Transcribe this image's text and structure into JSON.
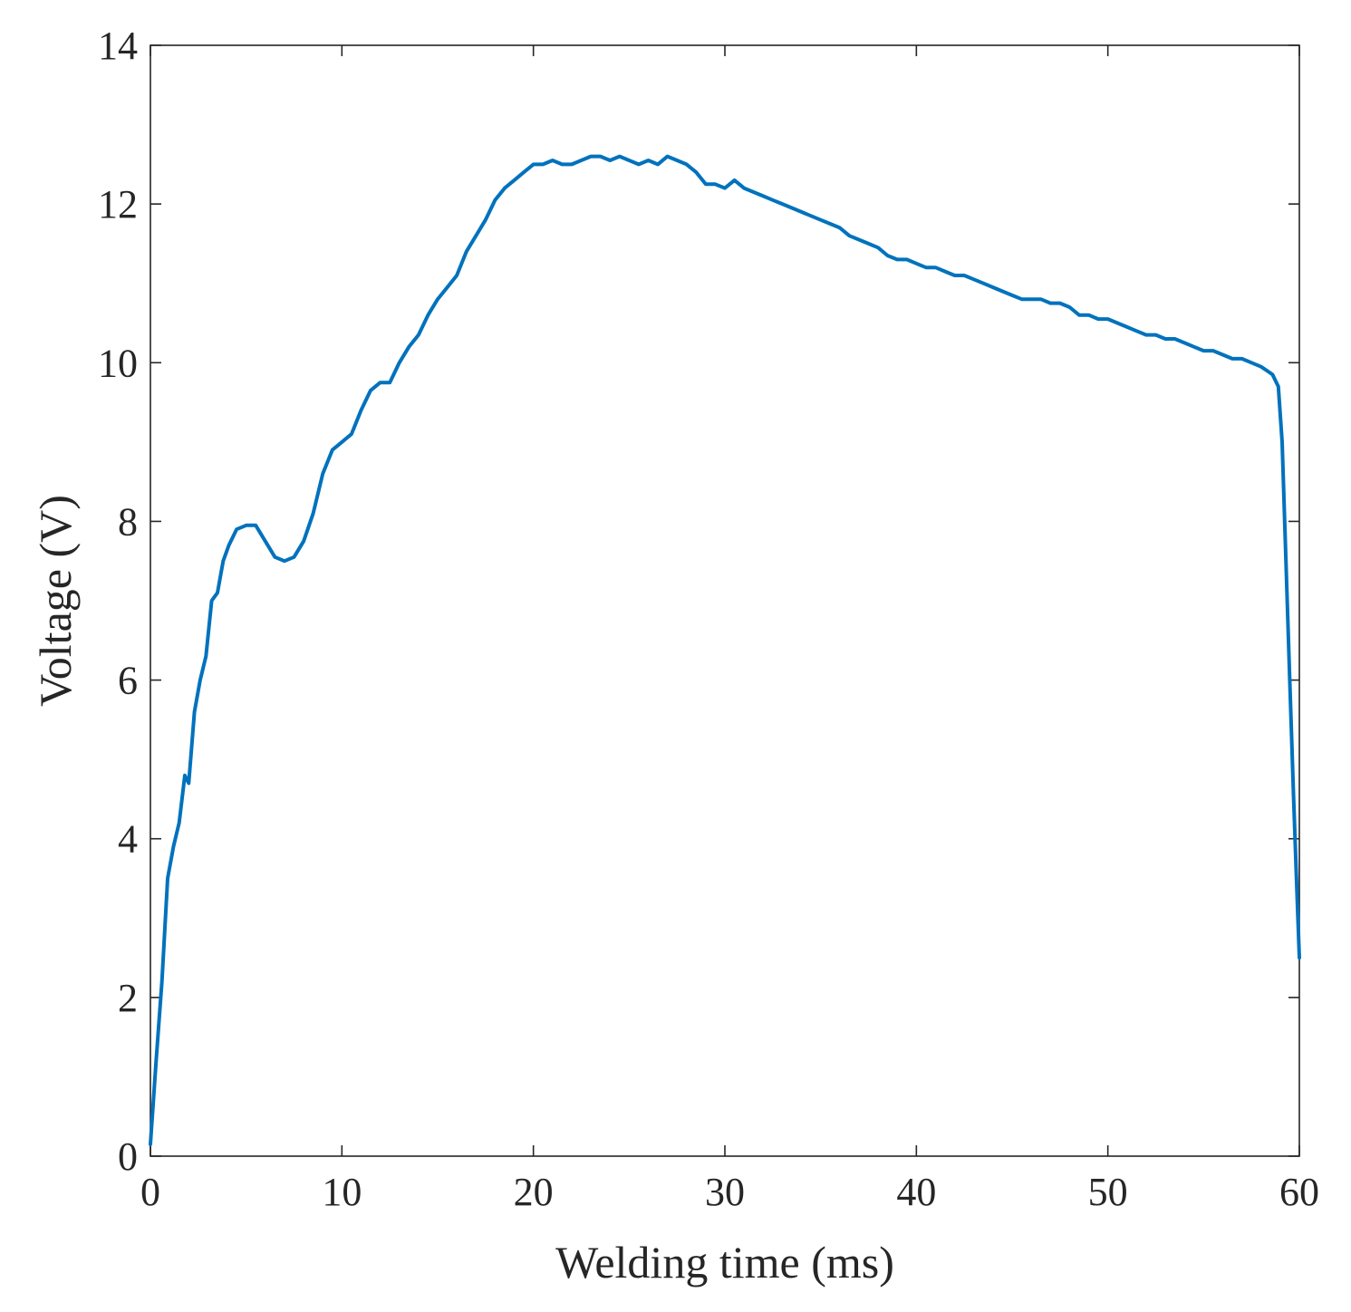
{
  "chart_data": {
    "type": "line",
    "title": "",
    "xlabel": "Welding time (ms)",
    "ylabel": "Voltage (V)",
    "xlim": [
      0,
      60
    ],
    "ylim": [
      0,
      14
    ],
    "xticks": [
      0,
      10,
      20,
      30,
      40,
      50,
      60
    ],
    "yticks": [
      0,
      2,
      4,
      6,
      8,
      10,
      12,
      14
    ],
    "grid": false,
    "legend": "none",
    "series": [
      {
        "color": "#0072BD",
        "x": [
          0,
          0.3,
          0.6,
          0.9,
          1.2,
          1.5,
          1.8,
          2.0,
          2.3,
          2.6,
          2.9,
          3.2,
          3.5,
          3.8,
          4.1,
          4.5,
          5.0,
          5.5,
          6.0,
          6.5,
          7.0,
          7.5,
          8.0,
          8.5,
          9.0,
          9.5,
          10.0,
          10.5,
          11.0,
          11.5,
          12.0,
          12.5,
          13.0,
          13.5,
          14.0,
          14.5,
          15.0,
          15.5,
          16.0,
          16.5,
          17.0,
          17.5,
          18.0,
          18.5,
          19.0,
          19.5,
          20.0,
          20.5,
          21.0,
          21.5,
          22.0,
          22.5,
          23.0,
          23.5,
          24.0,
          24.5,
          25.0,
          25.5,
          26.0,
          26.5,
          27.0,
          27.5,
          28.0,
          28.5,
          29.0,
          29.5,
          30.0,
          30.5,
          31.0,
          31.5,
          32.0,
          32.5,
          33.0,
          33.5,
          34.0,
          34.5,
          35.0,
          35.5,
          36.0,
          36.5,
          37.0,
          37.5,
          38.0,
          38.5,
          39.0,
          39.5,
          40.0,
          40.5,
          41.0,
          41.5,
          42.0,
          42.5,
          43.0,
          43.5,
          44.0,
          44.5,
          45.0,
          45.5,
          46.0,
          46.5,
          47.0,
          47.5,
          48.0,
          48.5,
          49.0,
          49.5,
          50.0,
          50.5,
          51.0,
          51.5,
          52.0,
          52.5,
          53.0,
          53.5,
          54.0,
          54.5,
          55.0,
          55.5,
          56.0,
          56.5,
          57.0,
          57.5,
          58.0,
          58.3,
          58.6,
          58.9,
          59.1,
          59.3,
          59.5,
          59.7,
          59.85,
          60.0
        ],
        "y": [
          0.15,
          1.2,
          2.2,
          3.5,
          3.9,
          4.2,
          4.8,
          4.7,
          5.6,
          6.0,
          6.3,
          7.0,
          7.1,
          7.5,
          7.7,
          7.9,
          7.95,
          7.95,
          7.75,
          7.55,
          7.5,
          7.55,
          7.75,
          8.1,
          8.6,
          8.9,
          9.0,
          9.1,
          9.4,
          9.65,
          9.75,
          9.75,
          10.0,
          10.2,
          10.35,
          10.6,
          10.8,
          10.95,
          11.1,
          11.4,
          11.6,
          11.8,
          12.05,
          12.2,
          12.3,
          12.4,
          12.5,
          12.5,
          12.55,
          12.5,
          12.5,
          12.55,
          12.6,
          12.6,
          12.55,
          12.6,
          12.55,
          12.5,
          12.55,
          12.5,
          12.6,
          12.55,
          12.5,
          12.4,
          12.25,
          12.25,
          12.2,
          12.3,
          12.2,
          12.15,
          12.1,
          12.05,
          12.0,
          11.95,
          11.9,
          11.85,
          11.8,
          11.75,
          11.7,
          11.6,
          11.55,
          11.5,
          11.45,
          11.35,
          11.3,
          11.3,
          11.25,
          11.2,
          11.2,
          11.15,
          11.1,
          11.1,
          11.05,
          11.0,
          10.95,
          10.9,
          10.85,
          10.8,
          10.8,
          10.8,
          10.75,
          10.75,
          10.7,
          10.6,
          10.6,
          10.55,
          10.55,
          10.5,
          10.45,
          10.4,
          10.35,
          10.35,
          10.3,
          10.3,
          10.25,
          10.2,
          10.15,
          10.15,
          10.1,
          10.05,
          10.05,
          10.0,
          9.95,
          9.9,
          9.85,
          9.7,
          9.0,
          7.5,
          6.0,
          4.5,
          3.5,
          2.5
        ]
      }
    ]
  }
}
